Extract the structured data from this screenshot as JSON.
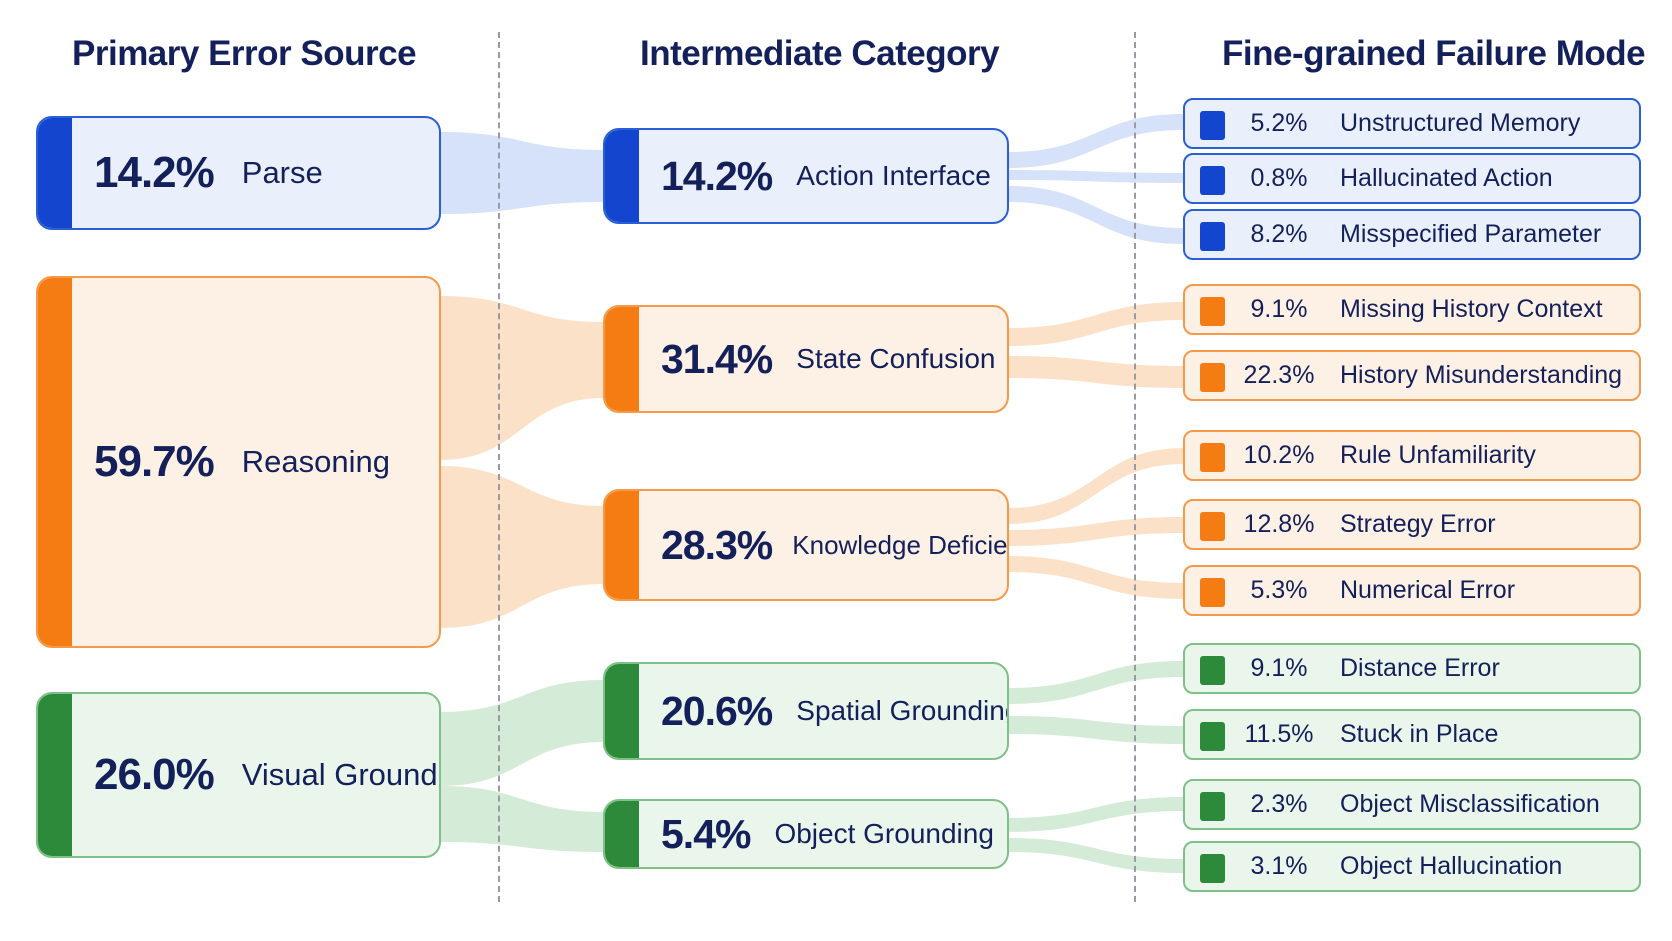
{
  "colors": {
    "blue": {
      "bar": "#1345cf",
      "light": "#e9f0fc",
      "border": "#2a5fd6",
      "link": "#cfddf8"
    },
    "orange": {
      "bar": "#f57c12",
      "light": "#fdf0e4",
      "border": "#f49a4a",
      "link": "#fbdcc0"
    },
    "green": {
      "bar": "#2d8a3a",
      "light": "#eaf5eb",
      "border": "#7fc088",
      "link": "#cde7d0"
    }
  },
  "headers": {
    "primary": "Primary Error Source",
    "intermediate": "Intermediate Category",
    "fine": "Fine-grained Failure Mode"
  },
  "primary": [
    {
      "id": "parse",
      "pct": "14.2%",
      "label": "Parse",
      "color": "blue"
    },
    {
      "id": "reasoning",
      "pct": "59.7%",
      "label": "Reasoning",
      "color": "orange"
    },
    {
      "id": "visual",
      "pct": "26.0%",
      "label": "Visual Grounding",
      "color": "green"
    }
  ],
  "intermediate": [
    {
      "id": "action",
      "pct": "14.2%",
      "label": "Action Interface",
      "color": "blue",
      "parent": "parse"
    },
    {
      "id": "state",
      "pct": "31.4%",
      "label": "State Confusion",
      "color": "orange",
      "parent": "reasoning"
    },
    {
      "id": "knowledge",
      "pct": "28.3%",
      "label": "Knowledge Deficiency",
      "color": "orange",
      "parent": "reasoning"
    },
    {
      "id": "spatial",
      "pct": "20.6%",
      "label": "Spatial Grounding",
      "color": "green",
      "parent": "visual"
    },
    {
      "id": "object",
      "pct": "5.4%",
      "label": "Object Grounding",
      "color": "green",
      "parent": "visual"
    }
  ],
  "fine": [
    {
      "pct": "5.2%",
      "label": "Unstructured Memory",
      "color": "blue",
      "parent": "action"
    },
    {
      "pct": "0.8%",
      "label": "Hallucinated Action",
      "color": "blue",
      "parent": "action"
    },
    {
      "pct": "8.2%",
      "label": "Misspecified Parameter",
      "color": "blue",
      "parent": "action"
    },
    {
      "pct": "9.1%",
      "label": "Missing History Context",
      "color": "orange",
      "parent": "state"
    },
    {
      "pct": "22.3%",
      "label": "History Misunderstanding",
      "color": "orange",
      "parent": "state"
    },
    {
      "pct": "10.2%",
      "label": "Rule Unfamiliarity",
      "color": "orange",
      "parent": "knowledge"
    },
    {
      "pct": "12.8%",
      "label": "Strategy Error",
      "color": "orange",
      "parent": "knowledge"
    },
    {
      "pct": "5.3%",
      "label": "Numerical Error",
      "color": "orange",
      "parent": "knowledge"
    },
    {
      "pct": "9.1%",
      "label": "Distance Error",
      "color": "green",
      "parent": "spatial"
    },
    {
      "pct": "11.5%",
      "label": "Stuck in Place",
      "color": "green",
      "parent": "spatial"
    },
    {
      "pct": "2.3%",
      "label": "Object Misclassification",
      "color": "green",
      "parent": "object"
    },
    {
      "pct": "3.1%",
      "label": "Object Hallucination",
      "color": "green",
      "parent": "object"
    }
  ]
}
